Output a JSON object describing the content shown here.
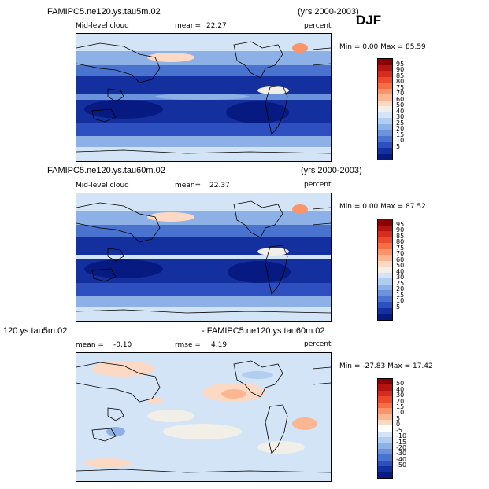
{
  "season_label": "DJF",
  "panels": [
    {
      "case_title": "FAMIPC5.ne120.ys.tau5m.02",
      "years": "(yrs 2000-2003)",
      "field_label": "Mid-level cloud",
      "stat_label": "mean=",
      "stat_value": "22.27",
      "units": "percent",
      "minmax": "Min =   0.00 Max =  85.59",
      "colorbar_labels": [
        "95",
        "90",
        "85",
        "80",
        "75",
        "70",
        "60",
        "50",
        "40",
        "30",
        "25",
        "20",
        "15",
        "10",
        "5"
      ]
    },
    {
      "case_title": "FAMIPC5.ne120.ys.tau60m.02",
      "years": "(yrs 2000-2003)",
      "field_label": "Mid-level cloud",
      "stat_label": "mean=",
      "stat_value": "22.37",
      "units": "percent",
      "minmax": "Min =   0.00 Max =  87.52",
      "colorbar_labels": [
        "95",
        "90",
        "85",
        "80",
        "75",
        "70",
        "60",
        "50",
        "40",
        "30",
        "25",
        "20",
        "15",
        "10",
        "5"
      ]
    },
    {
      "case_title_left": "120.ys.tau5m.02",
      "case_title_right": "- FAMIPC5.ne120.ys.tau60m.02",
      "mean_label": "mean =",
      "mean_value": "-0.10",
      "rmse_label": "rmse =",
      "rmse_value": "4.19",
      "units": "percent",
      "minmax": "Min = -27.83 Max =  17.42",
      "colorbar_labels": [
        "50",
        "40",
        "30",
        "20",
        "15",
        "10",
        "5",
        "0",
        "-5",
        "-10",
        "-15",
        "-20",
        "-30",
        "-40",
        "-50"
      ]
    }
  ],
  "colors": {
    "abs_scale": [
      "#8b0000",
      "#b5130f",
      "#d62b1f",
      "#ec4a2c",
      "#f56f45",
      "#fb9468",
      "#fcb692",
      "#fbd9c4",
      "#f2efe9",
      "#d4e4f7",
      "#b1cdef",
      "#8db1e6",
      "#6a93dc",
      "#4a72cf",
      "#2d4fbf",
      "#14309f",
      "#071a82"
    ],
    "diff_scale": [
      "#8b0000",
      "#b5130f",
      "#d62b1f",
      "#ec4a2c",
      "#f56f45",
      "#fb9468",
      "#fcb692",
      "#fbd9c4",
      "#ffffff",
      "#d4e4f7",
      "#b1cdef",
      "#8db1e6",
      "#6a93dc",
      "#4a72cf",
      "#2d4fbf",
      "#14309f",
      "#071a82"
    ]
  }
}
